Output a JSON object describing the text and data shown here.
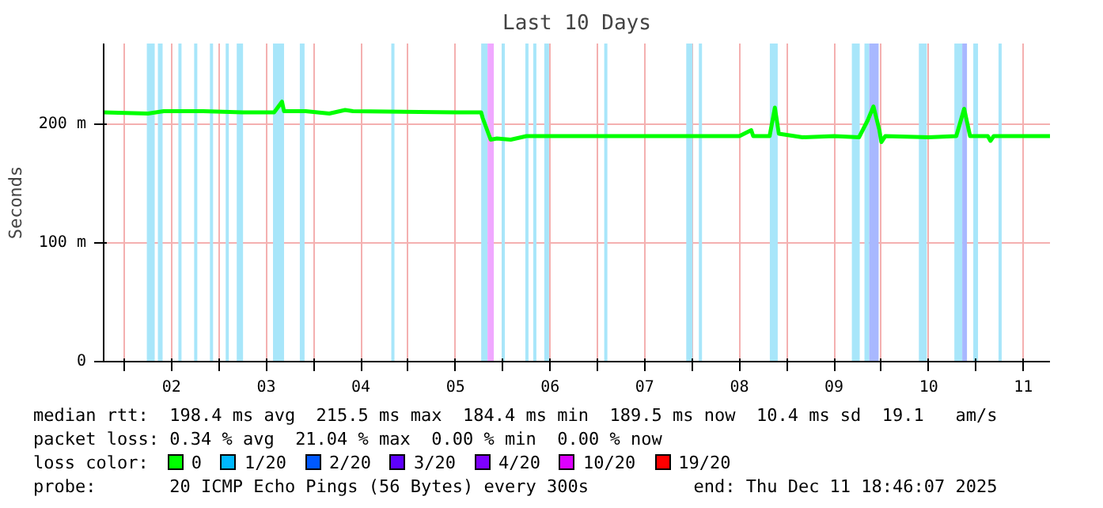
{
  "chart_data": {
    "type": "line",
    "title": "Last 10 Days",
    "ylabel": "Seconds",
    "xlim": [
      "2025-12-01T18:46",
      "2025-12-11T18:46"
    ],
    "xticks": [
      {
        "value": "2025-12-02T00:00",
        "label": null
      },
      {
        "value": "2025-12-02T12:00",
        "label": "02"
      },
      {
        "value": "2025-12-03T00:00",
        "label": null
      },
      {
        "value": "2025-12-03T12:00",
        "label": "03"
      },
      {
        "value": "2025-12-04T00:00",
        "label": null
      },
      {
        "value": "2025-12-04T12:00",
        "label": "04"
      },
      {
        "value": "2025-12-05T00:00",
        "label": null
      },
      {
        "value": "2025-12-05T12:00",
        "label": "05"
      },
      {
        "value": "2025-12-06T00:00",
        "label": null
      },
      {
        "value": "2025-12-06T12:00",
        "label": "06"
      },
      {
        "value": "2025-12-07T00:00",
        "label": null
      },
      {
        "value": "2025-12-07T12:00",
        "label": "07"
      },
      {
        "value": "2025-12-08T00:00",
        "label": null
      },
      {
        "value": "2025-12-08T12:00",
        "label": "08"
      },
      {
        "value": "2025-12-09T00:00",
        "label": null
      },
      {
        "value": "2025-12-09T12:00",
        "label": "09"
      },
      {
        "value": "2025-12-10T00:00",
        "label": null
      },
      {
        "value": "2025-12-10T12:00",
        "label": "10"
      },
      {
        "value": "2025-12-11T00:00",
        "label": null
      },
      {
        "value": "2025-12-11T12:00",
        "label": "11"
      }
    ],
    "ylim": [
      0,
      268
    ],
    "yticks": [
      0,
      {
        "value": 100,
        "label": "100 m"
      },
      {
        "value": 200,
        "label": "200 m"
      }
    ],
    "grid": true,
    "legend": "bottom",
    "legend_title": "loss color:",
    "series": [
      {
        "name": "0",
        "color": "#00ff00",
        "x": [
          "2025-12-01T18:46",
          "2025-12-02T06:00",
          "2025-12-02T10:00",
          "2025-12-02T20:00",
          "2025-12-03T06:00",
          "2025-12-03T14:00",
          "2025-12-03T16:00",
          "2025-12-03T16:30",
          "2025-12-03T22:00",
          "2025-12-04T04:00",
          "2025-12-04T08:00",
          "2025-12-04T10:00",
          "2025-12-05T12:00",
          "2025-12-05T18:30",
          "2025-12-05T18:55",
          "2025-12-05T20:55",
          "2025-12-05T22:30",
          "2025-12-06T02:00",
          "2025-12-06T06:00",
          "2025-12-06T12:00",
          "2025-12-07T12:00",
          "2025-12-08T12:00",
          "2025-12-08T15:00",
          "2025-12-08T15:30",
          "2025-12-08T19:40",
          "2025-12-08T21:00",
          "2025-12-08T22:00",
          "2025-12-09T04:00",
          "2025-12-09T12:00",
          "2025-12-09T18:20",
          "2025-12-09T20:30",
          "2025-12-09T22:00",
          "2025-12-09T23:30",
          "2025-12-10T00:00",
          "2025-12-10T01:00",
          "2025-12-10T12:00",
          "2025-12-10T19:00",
          "2025-12-10T21:00",
          "2025-12-10T22:30",
          "2025-12-11T03:00",
          "2025-12-11T03:40",
          "2025-12-11T04:30",
          "2025-12-11T18:46"
        ],
        "values": [
          210,
          209,
          211,
          211,
          210,
          210,
          219,
          211,
          211,
          209,
          212,
          211,
          210,
          210,
          205,
          187,
          188,
          187,
          190,
          190,
          190,
          190,
          195,
          190,
          190,
          214,
          192,
          189,
          190,
          189,
          203,
          215,
          195,
          185,
          190,
          189,
          190,
          213,
          190,
          190,
          186,
          190,
          190
        ]
      },
      {
        "name": "1/20",
        "color": "#00b8ff",
        "values": [
          null
        ]
      },
      {
        "name": "2/20",
        "color": "#0059ff",
        "values": [
          null
        ]
      },
      {
        "name": "3/20",
        "color": "#5e00ff",
        "values": [
          null
        ]
      },
      {
        "name": "4/20",
        "color": "#7e00ff",
        "values": [
          null
        ]
      },
      {
        "name": "10/20",
        "color": "#dd00ff",
        "values": [
          null
        ]
      },
      {
        "name": "19/20",
        "color": "#ff0000",
        "values": [
          null
        ]
      }
    ],
    "bands": [
      {
        "axis": "x",
        "from": "2025-12-02T05:43",
        "to": "2025-12-02T07:43",
        "color": "#a8e6fa"
      },
      {
        "axis": "x",
        "from": "2025-12-02T08:31",
        "to": "2025-12-02T09:43",
        "color": "#a8e6fa"
      },
      {
        "axis": "x",
        "from": "2025-12-02T13:43",
        "to": "2025-12-02T14:31",
        "color": "#a8e6fa"
      },
      {
        "axis": "x",
        "from": "2025-12-02T17:43",
        "to": "2025-12-02T18:31",
        "color": "#a8e6fa"
      },
      {
        "axis": "x",
        "from": "2025-12-02T21:43",
        "to": "2025-12-02T22:31",
        "color": "#a8e6fa"
      },
      {
        "axis": "x",
        "from": "2025-12-03T01:43",
        "to": "2025-12-03T02:31",
        "color": "#a8e6fa"
      },
      {
        "axis": "x",
        "from": "2025-12-03T04:31",
        "to": "2025-12-03T06:07",
        "color": "#a8e6fa"
      },
      {
        "axis": "x",
        "from": "2025-12-03T13:43",
        "to": "2025-12-03T16:31",
        "color": "#a8e6fa"
      },
      {
        "axis": "x",
        "from": "2025-12-03T20:31",
        "to": "2025-12-03T21:43",
        "color": "#a8e6fa"
      },
      {
        "axis": "x",
        "from": "2025-12-04T19:43",
        "to": "2025-12-04T20:31",
        "color": "#a8e6fa"
      },
      {
        "axis": "x",
        "from": "2025-12-05T18:31",
        "to": "2025-12-05T20:07",
        "color": "#a8e6fa"
      },
      {
        "axis": "x",
        "from": "2025-12-05T20:07",
        "to": "2025-12-05T21:43",
        "color": "#f0a8ff"
      },
      {
        "axis": "x",
        "from": "2025-12-05T23:43",
        "to": "2025-12-06T00:31",
        "color": "#a8e6fa"
      },
      {
        "axis": "x",
        "from": "2025-12-06T05:43",
        "to": "2025-12-06T06:31",
        "color": "#a8e6fa"
      },
      {
        "axis": "x",
        "from": "2025-12-06T07:43",
        "to": "2025-12-06T08:31",
        "color": "#a8e6fa"
      },
      {
        "axis": "x",
        "from": "2025-12-06T10:31",
        "to": "2025-12-06T11:43",
        "color": "#a8e6fa"
      },
      {
        "axis": "x",
        "from": "2025-12-07T01:43",
        "to": "2025-12-07T02:31",
        "color": "#a8e6fa"
      },
      {
        "axis": "x",
        "from": "2025-12-07T22:31",
        "to": "2025-12-08T00:07",
        "color": "#a8e6fa"
      },
      {
        "axis": "x",
        "from": "2025-12-08T01:43",
        "to": "2025-12-08T02:31",
        "color": "#a8e6fa"
      },
      {
        "axis": "x",
        "from": "2025-12-08T19:43",
        "to": "2025-12-08T21:43",
        "color": "#a8e6fa"
      },
      {
        "axis": "x",
        "from": "2025-12-09T16:31",
        "to": "2025-12-09T18:31",
        "color": "#a8e6fa"
      },
      {
        "axis": "x",
        "from": "2025-12-09T19:43",
        "to": "2025-12-09T20:55",
        "color": "#a8e6fa"
      },
      {
        "axis": "x",
        "from": "2025-12-09T20:55",
        "to": "2025-12-09T23:19",
        "color": "#a8b8ff"
      },
      {
        "axis": "x",
        "from": "2025-12-10T09:31",
        "to": "2025-12-10T11:31",
        "color": "#a8e6fa"
      },
      {
        "axis": "x",
        "from": "2025-12-10T18:31",
        "to": "2025-12-10T20:31",
        "color": "#a8e6fa"
      },
      {
        "axis": "x",
        "from": "2025-12-10T20:31",
        "to": "2025-12-10T21:43",
        "color": "#a8b8ff"
      },
      {
        "axis": "x",
        "from": "2025-12-10T23:19",
        "to": "2025-12-11T00:31",
        "color": "#a8e6fa"
      },
      {
        "axis": "x",
        "from": "2025-12-11T05:43",
        "to": "2025-12-11T06:31",
        "color": "#a8e6fa"
      }
    ],
    "annotations": [
      "median rtt:  198.4 ms avg  215.5 ms max  184.4 ms min  189.5 ms now  10.4 ms sd  19.1   am/s",
      "packet loss: 0.34 % avg  21.04 % max  0.00 % min  0.00 % now",
      "probe:       20 ICMP Echo Pings (56 Bytes) every 300s",
      "end: Thu Dec 11 18:46:07 2025"
    ]
  }
}
